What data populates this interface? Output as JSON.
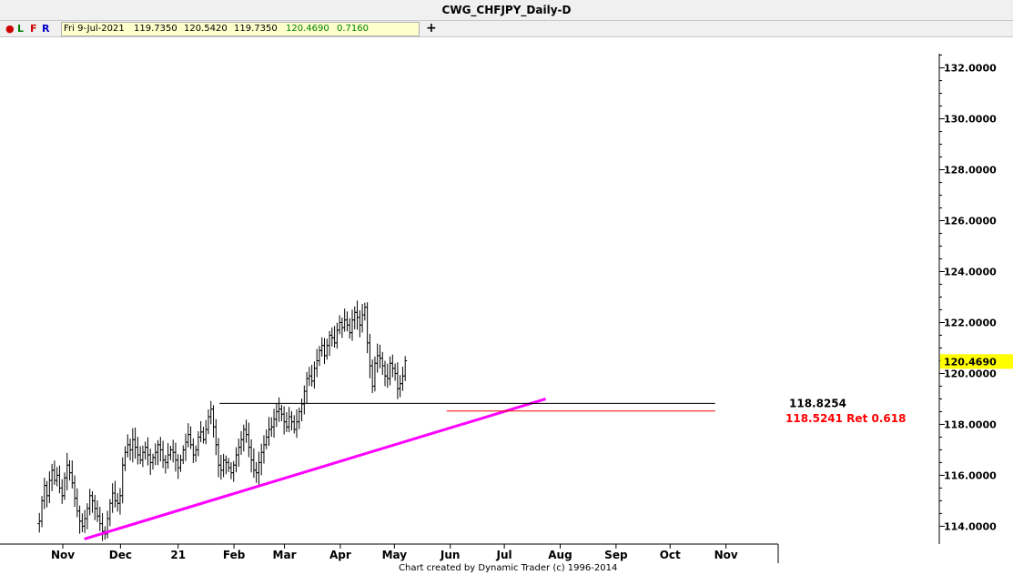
{
  "window": {
    "title": "CWG_CHFJPY_Daily-D"
  },
  "toolbar": {
    "dot_color": "#cc0000",
    "buttons": [
      {
        "label": "L",
        "color": "#008000"
      },
      {
        "label": "F",
        "color": "#cc0000"
      },
      {
        "label": "R",
        "color": "#0000cc"
      }
    ],
    "ohlc": {
      "date": "Fri 9-Jul-2021",
      "open": "119.7350",
      "high": "120.5420",
      "low": "119.7350",
      "close": "120.4690",
      "change": "0.7160"
    },
    "add_icon": "plus-icon"
  },
  "chart_data": {
    "type": "ohlc",
    "title": "CWG_CHFJPY_Daily-D",
    "ylim": [
      113.3,
      133.2
    ],
    "yticks": [
      "132.0000",
      "130.0000",
      "128.0000",
      "126.0000",
      "124.0000",
      "122.0000",
      "120.0000",
      "118.0000",
      "116.0000",
      "114.0000"
    ],
    "months": [
      {
        "label": "Nov",
        "day": 0
      },
      {
        "label": "Dec",
        "day": 32
      },
      {
        "label": "21",
        "day": 64
      },
      {
        "label": "Feb",
        "day": 95
      },
      {
        "label": "Mar",
        "day": 123
      },
      {
        "label": "Apr",
        "day": 154
      },
      {
        "label": "May",
        "day": 184
      },
      {
        "label": "Jun",
        "day": 215
      },
      {
        "label": "Jul",
        "day": 245
      },
      {
        "label": "Aug",
        "day": 276
      },
      {
        "label": "Sep",
        "day": 307
      },
      {
        "label": "Oct",
        "day": 337
      },
      {
        "label": "Nov",
        "day": 368
      }
    ],
    "bars_x_start_day": -13,
    "bars_x_step_days": 1.4,
    "closes": [
      114.2,
      115.0,
      115.6,
      115.2,
      115.8,
      116.2,
      115.8,
      116.0,
      115.5,
      115.2,
      115.9,
      116.4,
      116.1,
      115.7,
      115.1,
      114.6,
      114.2,
      114.0,
      114.3,
      114.7,
      115.2,
      115.0,
      114.7,
      114.4,
      114.1,
      113.8,
      113.7,
      114.3,
      114.9,
      115.3,
      115.0,
      114.9,
      115.2,
      116.4,
      116.9,
      117.2,
      117.0,
      117.4,
      117.1,
      116.8,
      116.6,
      116.9,
      117.1,
      116.8,
      116.5,
      116.7,
      116.9,
      117.2,
      117.0,
      116.6,
      116.5,
      116.8,
      117.0,
      116.9,
      116.6,
      116.3,
      116.6,
      117.0,
      117.3,
      117.6,
      117.2,
      116.8,
      117.0,
      117.5,
      117.7,
      117.4,
      117.8,
      118.3,
      118.6,
      117.9,
      117.2,
      116.4,
      116.2,
      116.6,
      116.5,
      116.3,
      116.1,
      116.4,
      116.8,
      117.1,
      117.4,
      117.8,
      117.6,
      117.1,
      116.6,
      116.2,
      116.1,
      116.5,
      116.9,
      117.2,
      117.5,
      117.8,
      117.9,
      118.2,
      118.5,
      118.6,
      118.4,
      118.1,
      117.9,
      118.3,
      118.1,
      117.8,
      118.1,
      118.5,
      118.8,
      119.3,
      119.8,
      119.9,
      119.7,
      120.2,
      120.5,
      120.9,
      121.1,
      120.7,
      121.1,
      121.5,
      121.4,
      121.2,
      121.7,
      122.0,
      121.8,
      122.1,
      121.9,
      121.6,
      122.1,
      122.4,
      122.2,
      121.9,
      122.3,
      122.6,
      121.2,
      120.3,
      119.5,
      120.4,
      120.7,
      120.6,
      120.3,
      119.9,
      119.8,
      120.4,
      120.2,
      120.0,
      119.4,
      119.6,
      119.9,
      120.5
    ],
    "lines": [
      {
        "kind": "support",
        "color": "#ff00ff",
        "from": {
          "day": 12,
          "price": 113.5
        },
        "to": {
          "day": 268,
          "price": 119.0
        }
      },
      {
        "kind": "horizontal",
        "color": "#000000",
        "day_from": 87,
        "day_to": 362,
        "price": 118.8254
      },
      {
        "kind": "horizontal",
        "color": "#ff0000",
        "day_from": 213,
        "day_to": 362,
        "price": 118.5241
      }
    ],
    "annotations": [
      {
        "text": "118.8254",
        "color": "#000000"
      },
      {
        "text": "118.5241 Ret 0.618",
        "color": "#ff0000"
      }
    ],
    "last_price": {
      "label": "120.4690",
      "price": 120.469,
      "bg": "#ffff00"
    },
    "credit": "Chart created by Dynamic Trader  (c) 1996-2014"
  }
}
